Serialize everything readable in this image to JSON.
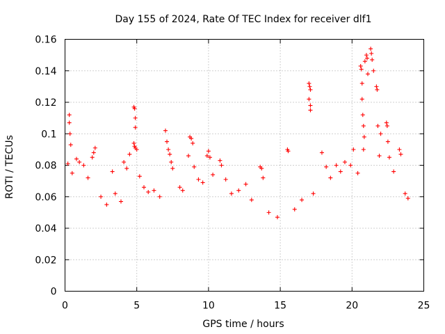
{
  "chart_data": {
    "type": "scatter",
    "title": "Day 155 of 2024, Rate Of TEC Index for receiver dlf1",
    "xlabel": "GPS time / hours",
    "ylabel": "ROTI / TECUs",
    "xlim": [
      0,
      25
    ],
    "ylim": [
      0,
      0.16
    ],
    "xticks": [
      0,
      5,
      10,
      15,
      20,
      25
    ],
    "xtick_labels": [
      "0",
      "5",
      "10",
      "15",
      "20",
      "25"
    ],
    "yticks": [
      0,
      0.02,
      0.04,
      0.06,
      0.08,
      0.1,
      0.12,
      0.14,
      0.16
    ],
    "ytick_labels": [
      "0",
      "0.02",
      "0.04",
      "0.06",
      "0.08",
      "0.1",
      "0.12",
      "0.14",
      "0.16"
    ],
    "grid": true,
    "marker": "+",
    "color": "#ff0000",
    "series": [
      {
        "name": "ROTI",
        "points": [
          [
            0.3,
            0.112
          ],
          [
            0.3,
            0.107
          ],
          [
            0.35,
            0.1
          ],
          [
            0.4,
            0.093
          ],
          [
            0.2,
            0.081
          ],
          [
            0.5,
            0.075
          ],
          [
            0.8,
            0.084
          ],
          [
            1.0,
            0.082
          ],
          [
            1.3,
            0.08
          ],
          [
            1.6,
            0.072
          ],
          [
            2.1,
            0.091
          ],
          [
            2.0,
            0.088
          ],
          [
            1.9,
            0.085
          ],
          [
            2.5,
            0.06
          ],
          [
            2.9,
            0.055
          ],
          [
            3.3,
            0.076
          ],
          [
            3.5,
            0.062
          ],
          [
            3.9,
            0.057
          ],
          [
            4.1,
            0.082
          ],
          [
            4.3,
            0.078
          ],
          [
            4.5,
            0.087
          ],
          [
            4.8,
            0.117
          ],
          [
            4.85,
            0.116
          ],
          [
            4.9,
            0.11
          ],
          [
            4.9,
            0.104
          ],
          [
            4.8,
            0.094
          ],
          [
            4.85,
            0.092
          ],
          [
            4.9,
            0.091
          ],
          [
            5.0,
            0.09
          ],
          [
            5.2,
            0.073
          ],
          [
            5.5,
            0.066
          ],
          [
            5.8,
            0.063
          ],
          [
            6.2,
            0.064
          ],
          [
            6.6,
            0.06
          ],
          [
            7.0,
            0.102
          ],
          [
            7.1,
            0.095
          ],
          [
            7.2,
            0.09
          ],
          [
            7.3,
            0.087
          ],
          [
            7.4,
            0.082
          ],
          [
            7.5,
            0.078
          ],
          [
            8.0,
            0.066
          ],
          [
            8.2,
            0.064
          ],
          [
            8.6,
            0.086
          ],
          [
            8.7,
            0.098
          ],
          [
            8.8,
            0.097
          ],
          [
            8.9,
            0.094
          ],
          [
            9.0,
            0.079
          ],
          [
            9.3,
            0.071
          ],
          [
            9.6,
            0.069
          ],
          [
            9.9,
            0.086
          ],
          [
            10.0,
            0.089
          ],
          [
            10.1,
            0.085
          ],
          [
            10.3,
            0.074
          ],
          [
            10.8,
            0.083
          ],
          [
            10.9,
            0.08
          ],
          [
            11.2,
            0.071
          ],
          [
            11.6,
            0.062
          ],
          [
            12.1,
            0.064
          ],
          [
            12.6,
            0.068
          ],
          [
            13.0,
            0.058
          ],
          [
            13.6,
            0.079
          ],
          [
            13.7,
            0.078
          ],
          [
            13.8,
            0.072
          ],
          [
            14.2,
            0.05
          ],
          [
            14.8,
            0.047
          ],
          [
            15.5,
            0.09
          ],
          [
            15.55,
            0.089
          ],
          [
            16.0,
            0.052
          ],
          [
            16.5,
            0.058
          ],
          [
            17.0,
            0.132
          ],
          [
            17.05,
            0.13
          ],
          [
            17.1,
            0.128
          ],
          [
            17.0,
            0.122
          ],
          [
            17.1,
            0.118
          ],
          [
            17.1,
            0.115
          ],
          [
            17.3,
            0.062
          ],
          [
            17.9,
            0.088
          ],
          [
            18.2,
            0.079
          ],
          [
            18.5,
            0.072
          ],
          [
            18.9,
            0.08
          ],
          [
            19.2,
            0.076
          ],
          [
            19.5,
            0.082
          ],
          [
            19.9,
            0.08
          ],
          [
            20.1,
            0.09
          ],
          [
            20.4,
            0.075
          ],
          [
            20.6,
            0.143
          ],
          [
            20.65,
            0.141
          ],
          [
            20.7,
            0.132
          ],
          [
            20.7,
            0.122
          ],
          [
            20.75,
            0.112
          ],
          [
            20.8,
            0.105
          ],
          [
            20.85,
            0.098
          ],
          [
            20.8,
            0.09
          ],
          [
            20.9,
            0.146
          ],
          [
            21.0,
            0.15
          ],
          [
            21.05,
            0.148
          ],
          [
            21.1,
            0.138
          ],
          [
            21.3,
            0.154
          ],
          [
            21.35,
            0.151
          ],
          [
            21.4,
            0.147
          ],
          [
            21.5,
            0.14
          ],
          [
            21.7,
            0.13
          ],
          [
            21.75,
            0.128
          ],
          [
            21.8,
            0.105
          ],
          [
            21.9,
            0.086
          ],
          [
            22.0,
            0.1
          ],
          [
            22.4,
            0.107
          ],
          [
            22.45,
            0.105
          ],
          [
            22.5,
            0.095
          ],
          [
            22.6,
            0.085
          ],
          [
            22.9,
            0.076
          ],
          [
            23.3,
            0.09
          ],
          [
            23.4,
            0.087
          ],
          [
            23.7,
            0.062
          ],
          [
            23.9,
            0.059
          ]
        ]
      }
    ]
  }
}
